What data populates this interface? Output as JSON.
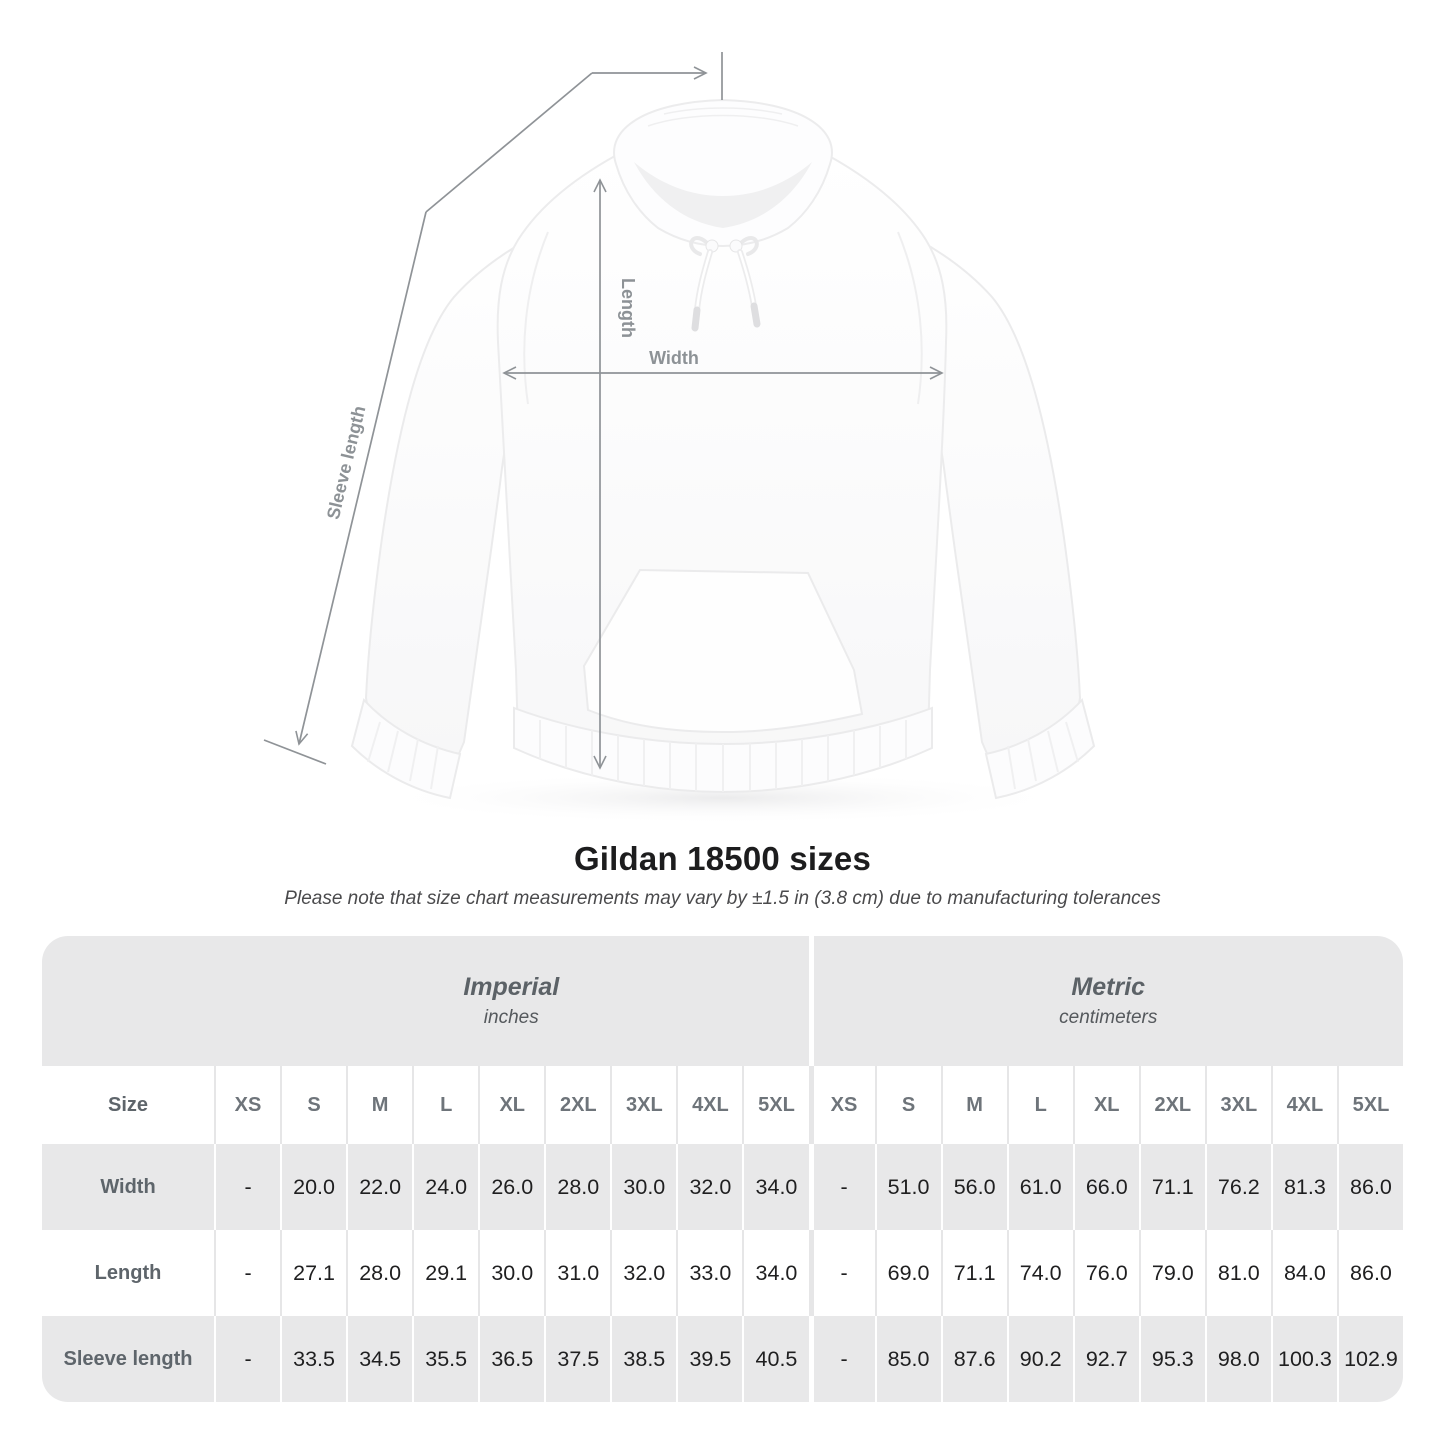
{
  "title": "Gildan 18500 sizes",
  "note": "Please note that size chart measurements may vary by ±1.5 in (3.8 cm) due to manufacturing tolerances",
  "diagram": {
    "width_label": "Width",
    "length_label": "Length",
    "sleeve_label": "Sleeve length"
  },
  "table_meta": {
    "size_header": "Size",
    "sections": [
      {
        "name": "Imperial",
        "unit": "inches"
      },
      {
        "name": "Metric",
        "unit": "centimeters"
      }
    ]
  },
  "chart_data": {
    "type": "table",
    "title": "Gildan 18500 sizes",
    "columns": [
      "XS",
      "S",
      "M",
      "L",
      "XL",
      "2XL",
      "3XL",
      "4XL",
      "5XL"
    ],
    "rows": [
      {
        "label": "Width",
        "imperial": [
          "-",
          "20.0",
          "22.0",
          "24.0",
          "26.0",
          "28.0",
          "30.0",
          "32.0",
          "34.0"
        ],
        "metric": [
          "-",
          "51.0",
          "56.0",
          "61.0",
          "66.0",
          "71.1",
          "76.2",
          "81.3",
          "86.0"
        ]
      },
      {
        "label": "Length",
        "imperial": [
          "-",
          "27.1",
          "28.0",
          "29.1",
          "30.0",
          "31.0",
          "32.0",
          "33.0",
          "34.0"
        ],
        "metric": [
          "-",
          "69.0",
          "71.1",
          "74.0",
          "76.0",
          "79.0",
          "81.0",
          "84.0",
          "86.0"
        ]
      },
      {
        "label": "Sleeve length",
        "imperial": [
          "-",
          "33.5",
          "34.5",
          "35.5",
          "36.5",
          "37.5",
          "38.5",
          "39.5",
          "40.5"
        ],
        "metric": [
          "-",
          "85.0",
          "87.6",
          "90.2",
          "92.7",
          "95.3",
          "98.0",
          "100.3",
          "102.9"
        ]
      }
    ]
  },
  "colors": {
    "dimension_line": "#8f9397",
    "label_gray": "#8d9296",
    "table_gray": "#e8e8e9",
    "header_text": "#6e747a",
    "value_text": "#1f1f20"
  }
}
